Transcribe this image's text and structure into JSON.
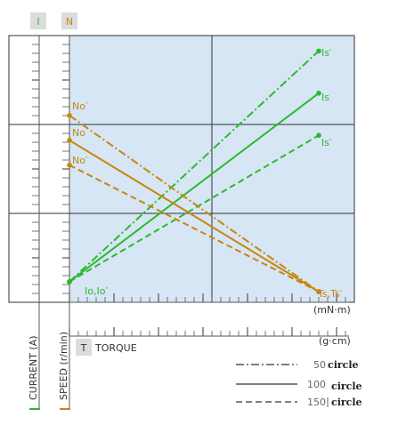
{
  "chart_data": {
    "type": "line",
    "header_badges": {
      "current": "I",
      "speed": "N"
    },
    "axis_titles": {
      "current": "CURRENT (A)",
      "speed": "SPEED (r/min)",
      "torque_badge": "T",
      "torque": "TORQUE"
    },
    "torque_units": {
      "upper": "(mN·m)",
      "lower": "(g·cm)"
    },
    "x_range": [
      0,
      1
    ],
    "y_range": [
      0,
      1
    ],
    "series": [
      {
        "name": "Is′",
        "group": "current",
        "condition": "50",
        "style": "dashdot",
        "color": "#2eb82e",
        "points": [
          [
            0.0,
            0.04
          ],
          [
            1.0,
            0.97
          ]
        ]
      },
      {
        "name": "Is",
        "group": "current",
        "condition": "100",
        "style": "solid",
        "color": "#2eb82e",
        "points": [
          [
            0.0,
            0.04
          ],
          [
            1.0,
            0.8
          ]
        ]
      },
      {
        "name": "Is′",
        "group": "current",
        "condition": "150",
        "style": "dashed",
        "color": "#2eb82e",
        "points": [
          [
            0.0,
            0.04
          ],
          [
            1.0,
            0.63
          ]
        ]
      },
      {
        "name": "No′",
        "group": "speed",
        "condition": "50",
        "style": "dashdot",
        "color": "#c8860f",
        "points": [
          [
            0.0,
            0.71
          ],
          [
            1.0,
            0.0
          ]
        ]
      },
      {
        "name": "No",
        "group": "speed",
        "condition": "100",
        "style": "solid",
        "color": "#c8860f",
        "points": [
          [
            0.0,
            0.61
          ],
          [
            1.0,
            0.0
          ]
        ]
      },
      {
        "name": "No′",
        "group": "speed",
        "condition": "150",
        "style": "dashed",
        "color": "#c8860f",
        "points": [
          [
            0.0,
            0.51
          ],
          [
            1.0,
            0.0
          ]
        ]
      }
    ],
    "annotations": {
      "origin": "Io,Io′",
      "stall": "Ts,Ts′"
    },
    "legend": {
      "placement": "bottom-right",
      "entries": [
        {
          "value": "50",
          "unit": "circle",
          "style": "dashdot"
        },
        {
          "value": "100",
          "unit": "circle",
          "style": "solid"
        },
        {
          "value": "150",
          "unit": "circle",
          "style": "dashed"
        }
      ]
    },
    "grid": true,
    "colors": {
      "plot_bg": "#d6e6f4",
      "current": "#2eb82e",
      "speed": "#c8860f",
      "grid": "#333333"
    }
  }
}
